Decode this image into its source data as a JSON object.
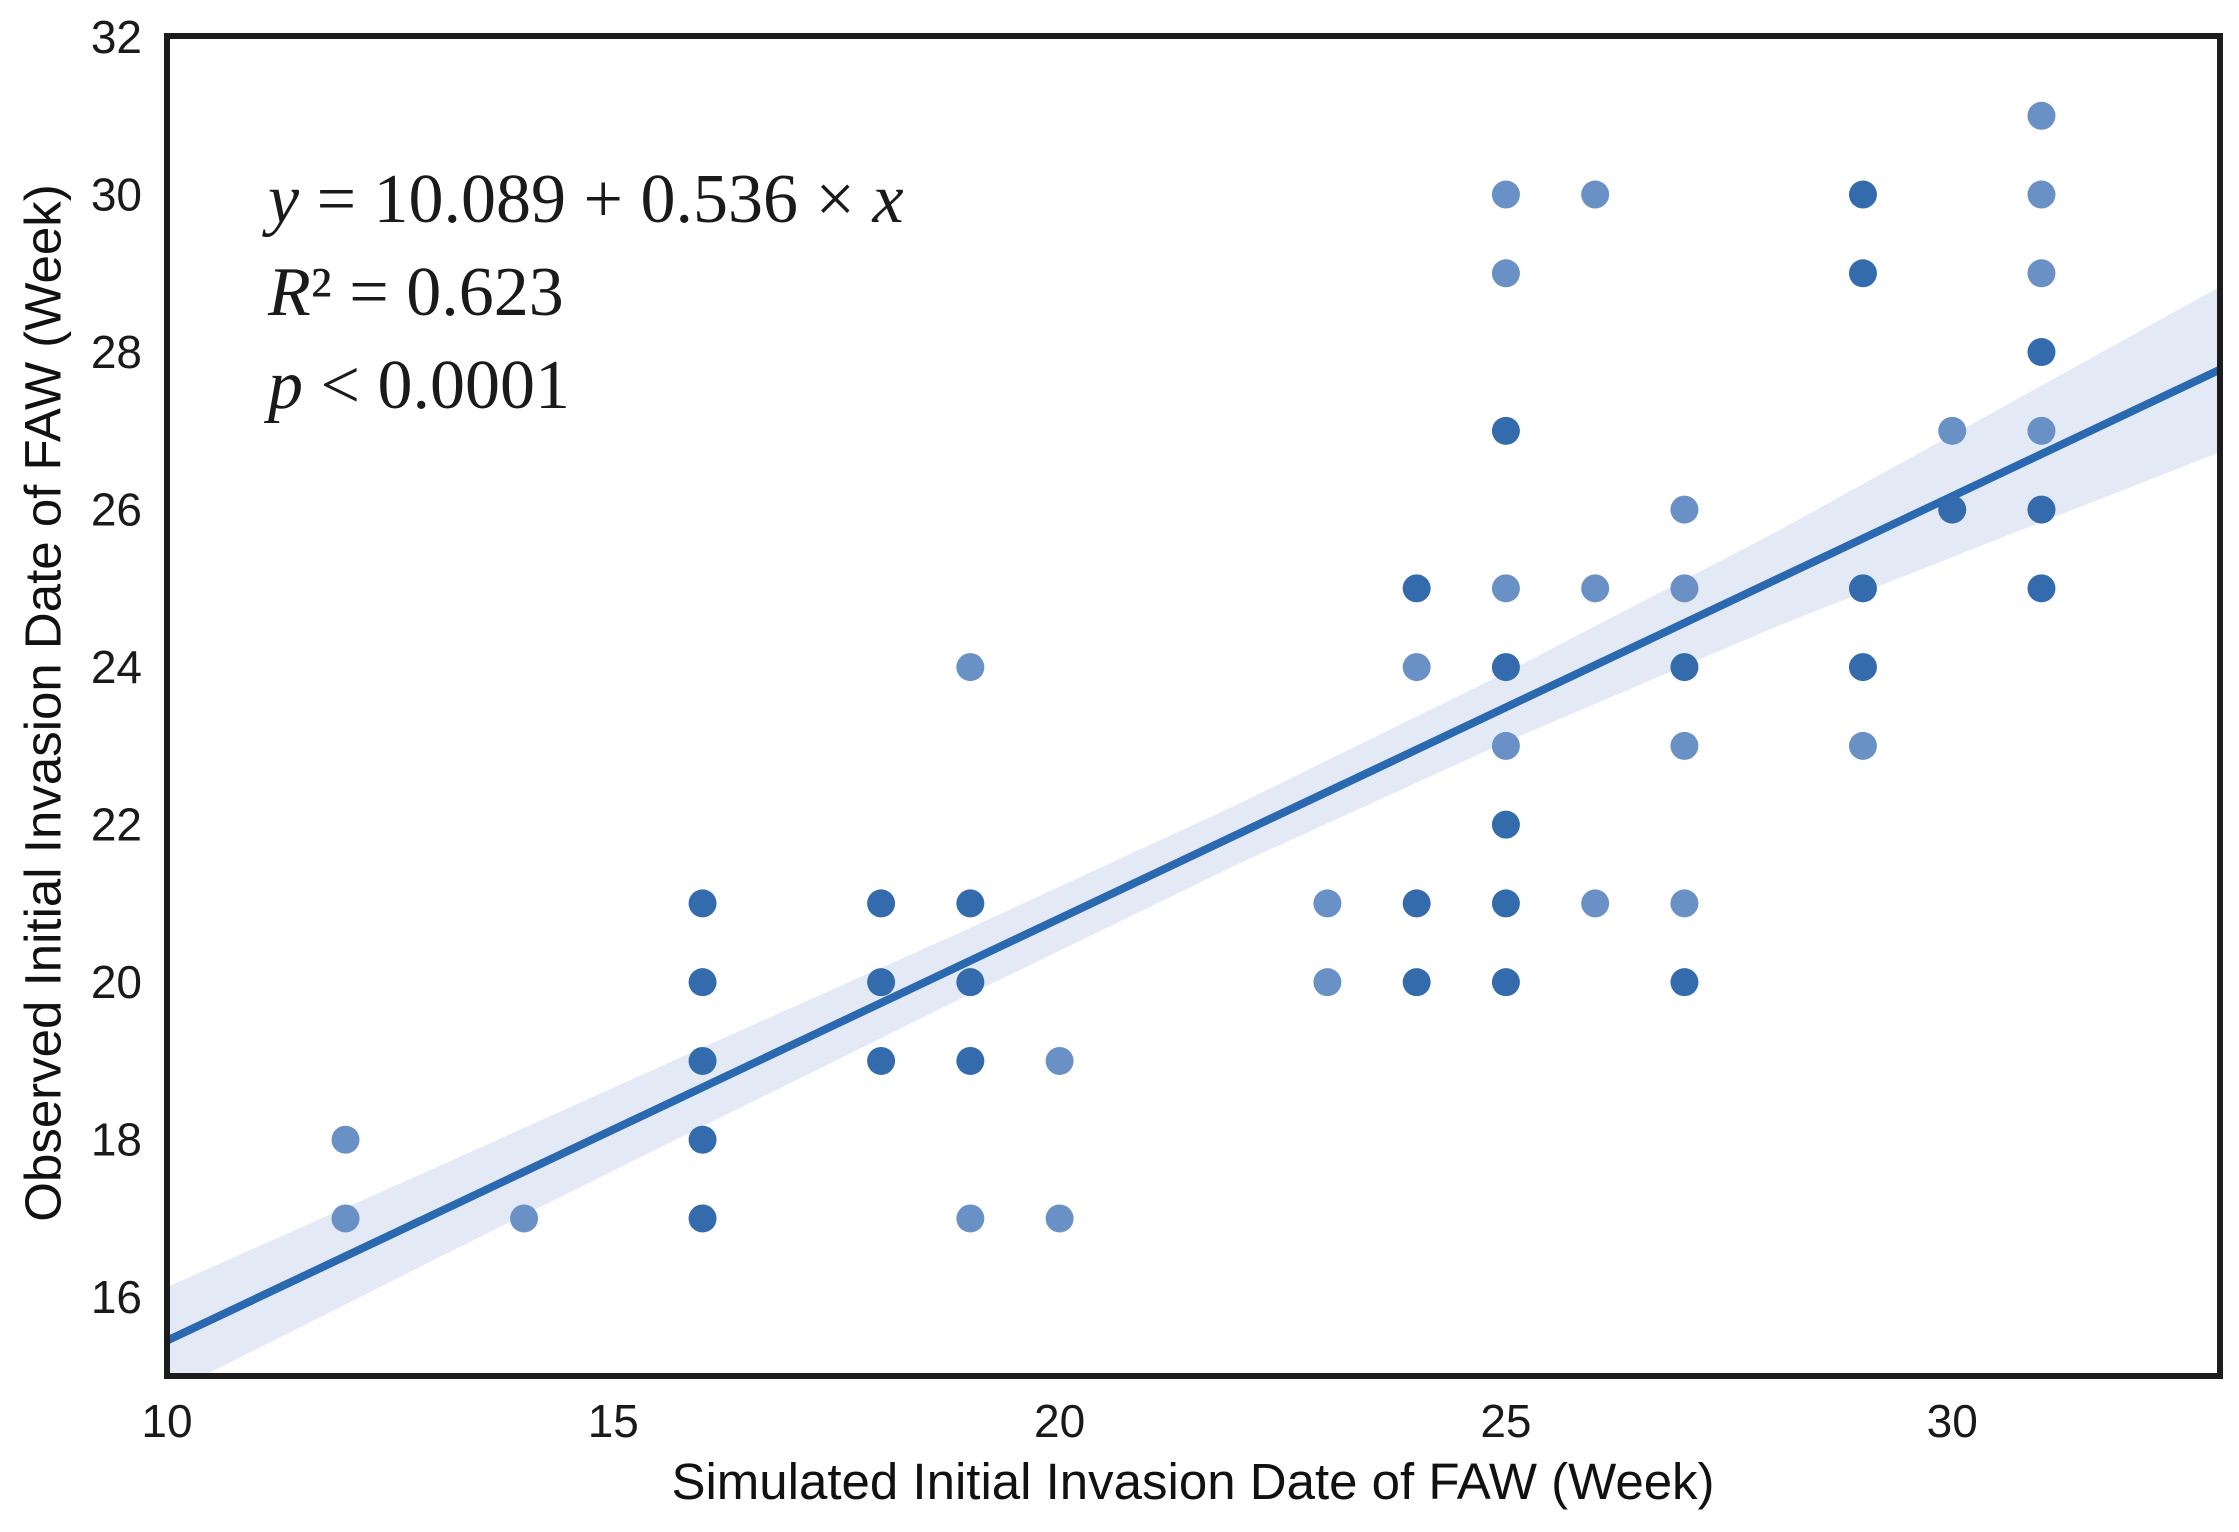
{
  "chart_data": {
    "type": "scatter",
    "title": "",
    "xlabel": "Simulated Initial Invasion Date of FAW (Week)",
    "ylabel": "Observed Initial Invasion Date of FAW (Week)",
    "xlim": [
      10,
      33
    ],
    "ylim": [
      15,
      32
    ],
    "x_ticks": [
      10,
      15,
      20,
      25,
      30
    ],
    "y_ticks": [
      16,
      18,
      20,
      22,
      24,
      26,
      28,
      30,
      32
    ],
    "grid": false,
    "legend": null,
    "annotation_lines": [
      "y = 10.089 + 0.536 × x",
      "R² = 0.623",
      "p < 0.0001"
    ],
    "regression": {
      "intercept": 10.089,
      "slope": 0.536,
      "r_squared": 0.623,
      "p_value_text": "p < 0.0001"
    },
    "points": [
      {
        "x": 12,
        "y": 18,
        "overlap": false
      },
      {
        "x": 12,
        "y": 17,
        "overlap": false
      },
      {
        "x": 14,
        "y": 17,
        "overlap": false
      },
      {
        "x": 16,
        "y": 21,
        "overlap": true
      },
      {
        "x": 16,
        "y": 20,
        "overlap": true
      },
      {
        "x": 16,
        "y": 19,
        "overlap": true
      },
      {
        "x": 16,
        "y": 18,
        "overlap": true
      },
      {
        "x": 16,
        "y": 17,
        "overlap": true
      },
      {
        "x": 18,
        "y": 21,
        "overlap": true
      },
      {
        "x": 18,
        "y": 20,
        "overlap": true
      },
      {
        "x": 18,
        "y": 19,
        "overlap": true
      },
      {
        "x": 19,
        "y": 24,
        "overlap": false
      },
      {
        "x": 19,
        "y": 21,
        "overlap": true
      },
      {
        "x": 19,
        "y": 20,
        "overlap": true
      },
      {
        "x": 19,
        "y": 19,
        "overlap": true
      },
      {
        "x": 19,
        "y": 17,
        "overlap": false
      },
      {
        "x": 20,
        "y": 19,
        "overlap": false
      },
      {
        "x": 20,
        "y": 17,
        "overlap": false
      },
      {
        "x": 23,
        "y": 21,
        "overlap": false
      },
      {
        "x": 23,
        "y": 20,
        "overlap": false
      },
      {
        "x": 24,
        "y": 25,
        "overlap": true
      },
      {
        "x": 24,
        "y": 24,
        "overlap": false
      },
      {
        "x": 24,
        "y": 21,
        "overlap": true
      },
      {
        "x": 24,
        "y": 20,
        "overlap": true
      },
      {
        "x": 25,
        "y": 30,
        "overlap": false
      },
      {
        "x": 25,
        "y": 29,
        "overlap": false
      },
      {
        "x": 25,
        "y": 27,
        "overlap": true
      },
      {
        "x": 25,
        "y": 25,
        "overlap": false
      },
      {
        "x": 25,
        "y": 24,
        "overlap": true
      },
      {
        "x": 25,
        "y": 23,
        "overlap": false
      },
      {
        "x": 25,
        "y": 22,
        "overlap": true
      },
      {
        "x": 25,
        "y": 21,
        "overlap": true
      },
      {
        "x": 25,
        "y": 20,
        "overlap": true
      },
      {
        "x": 26,
        "y": 30,
        "overlap": false
      },
      {
        "x": 26,
        "y": 25,
        "overlap": false
      },
      {
        "x": 26,
        "y": 21,
        "overlap": false
      },
      {
        "x": 27,
        "y": 26,
        "overlap": false
      },
      {
        "x": 27,
        "y": 25,
        "overlap": false
      },
      {
        "x": 27,
        "y": 24,
        "overlap": true
      },
      {
        "x": 27,
        "y": 23,
        "overlap": false
      },
      {
        "x": 27,
        "y": 21,
        "overlap": false
      },
      {
        "x": 27,
        "y": 20,
        "overlap": true
      },
      {
        "x": 29,
        "y": 30,
        "overlap": true
      },
      {
        "x": 29,
        "y": 29,
        "overlap": true
      },
      {
        "x": 29,
        "y": 25,
        "overlap": true
      },
      {
        "x": 29,
        "y": 24,
        "overlap": true
      },
      {
        "x": 29,
        "y": 23,
        "overlap": false
      },
      {
        "x": 30,
        "y": 27,
        "overlap": false
      },
      {
        "x": 30,
        "y": 26,
        "overlap": true
      },
      {
        "x": 31,
        "y": 31,
        "overlap": false
      },
      {
        "x": 31,
        "y": 30,
        "overlap": false
      },
      {
        "x": 31,
        "y": 29,
        "overlap": false
      },
      {
        "x": 31,
        "y": 28,
        "overlap": true
      },
      {
        "x": 31,
        "y": 27,
        "overlap": false
      },
      {
        "x": 31,
        "y": 26,
        "overlap": true
      },
      {
        "x": 31,
        "y": 25,
        "overlap": true
      }
    ],
    "confidence_band": {
      "x": [
        10,
        13,
        16,
        19,
        22,
        25,
        28,
        30.5,
        33
      ],
      "upper": [
        16.13,
        17.64,
        19.17,
        20.69,
        22.26,
        23.93,
        25.7,
        27.26,
        28.83
      ],
      "lower": [
        14.77,
        16.48,
        18.17,
        19.85,
        21.5,
        23.05,
        24.5,
        25.62,
        26.73
      ]
    },
    "colors": {
      "point_single": "#6a91c6",
      "point_overlap": "#336bac",
      "regression_line": "#2a69b0",
      "confidence_band": "#e3e9f5",
      "frame": "#1c1c1c",
      "text": "#1a1a1a"
    }
  }
}
